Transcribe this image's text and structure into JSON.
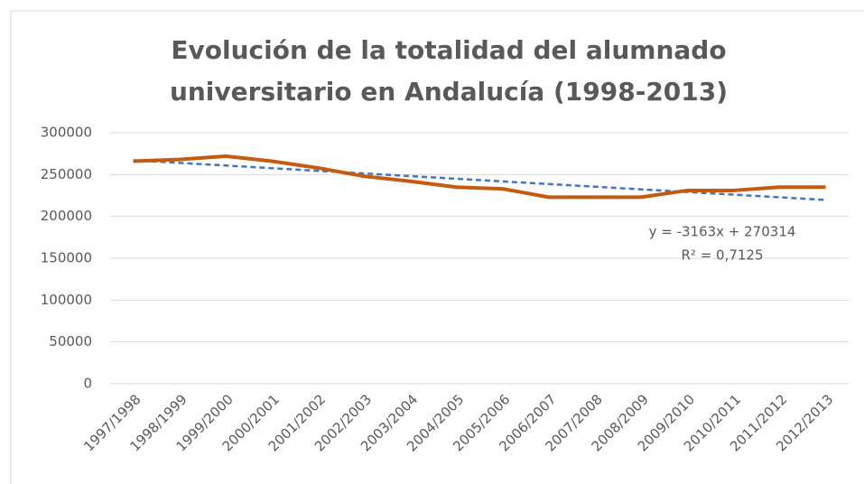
{
  "chart_data": {
    "type": "line",
    "title": [
      "Evolución de la totalidad del alumnado",
      "universitario en Andalucía (1998-2013)"
    ],
    "categories": [
      "1997/1998",
      "1998/1999",
      "1999/2000",
      "2000/2001",
      "2001/2002",
      "2002/2003",
      "2003/2004",
      "2004/2005",
      "2005/2006",
      "2006/2007",
      "2007/2008",
      "2008/2009",
      "2009/2010",
      "2010/2011",
      "2011/2012",
      "2012/2013"
    ],
    "series": [
      {
        "color": "#c55a11",
        "values": [
          266000,
          268000,
          272000,
          266000,
          258000,
          248000,
          242000,
          235000,
          233000,
          223000,
          223000,
          223000,
          231000,
          231000,
          235000,
          235000
        ]
      }
    ],
    "trendline": {
      "color": "#4472c4",
      "slope": -3163,
      "intercept": 270314,
      "label": "y = -3163x + 270314",
      "r2_label": "R² = 0,7125"
    },
    "ylim": [
      0,
      300000
    ],
    "yticks": [
      0,
      50000,
      100000,
      150000,
      200000,
      250000,
      300000
    ],
    "grid": true
  }
}
